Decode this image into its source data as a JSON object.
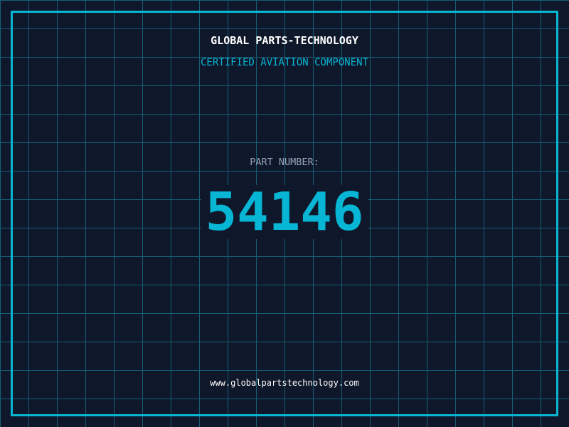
{
  "header": {
    "title": "GLOBAL PARTS-TECHNOLOGY",
    "subtitle": "CERTIFIED AVIATION COMPONENT"
  },
  "part": {
    "label": "PART NUMBER:",
    "number": "54146"
  },
  "footer": {
    "url": "www.globalpartstechnology.com"
  },
  "colors": {
    "background": "#0f172a",
    "grid": "#155e75",
    "accent": "#06b6d4",
    "label": "#94a3b8"
  }
}
